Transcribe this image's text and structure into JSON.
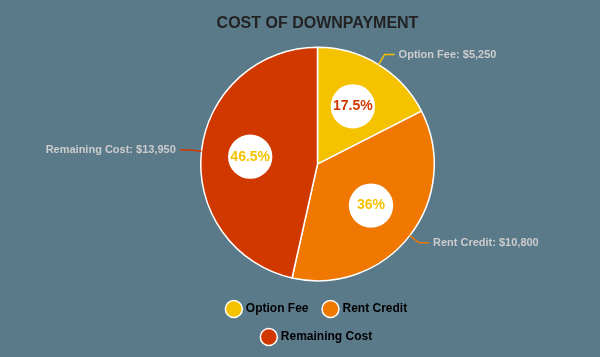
{
  "chart_data": {
    "type": "pie",
    "title": "COST OF DOWNPAYMENT",
    "categories": [
      "Option Fee",
      "Rent Credit",
      "Remaining Cost"
    ],
    "values": [
      17.5,
      36.0,
      46.5
    ],
    "colors": [
      "#F5C200",
      "#F07800",
      "#D03800"
    ],
    "data_labels": true,
    "value_labels": [
      "17.5%",
      "36%",
      "46.5%"
    ],
    "annotations": [
      "Option Fee: $5,250",
      "Rent Credit: $10,800",
      "Remaining Cost: $13,950"
    ],
    "legend": "bottom"
  }
}
